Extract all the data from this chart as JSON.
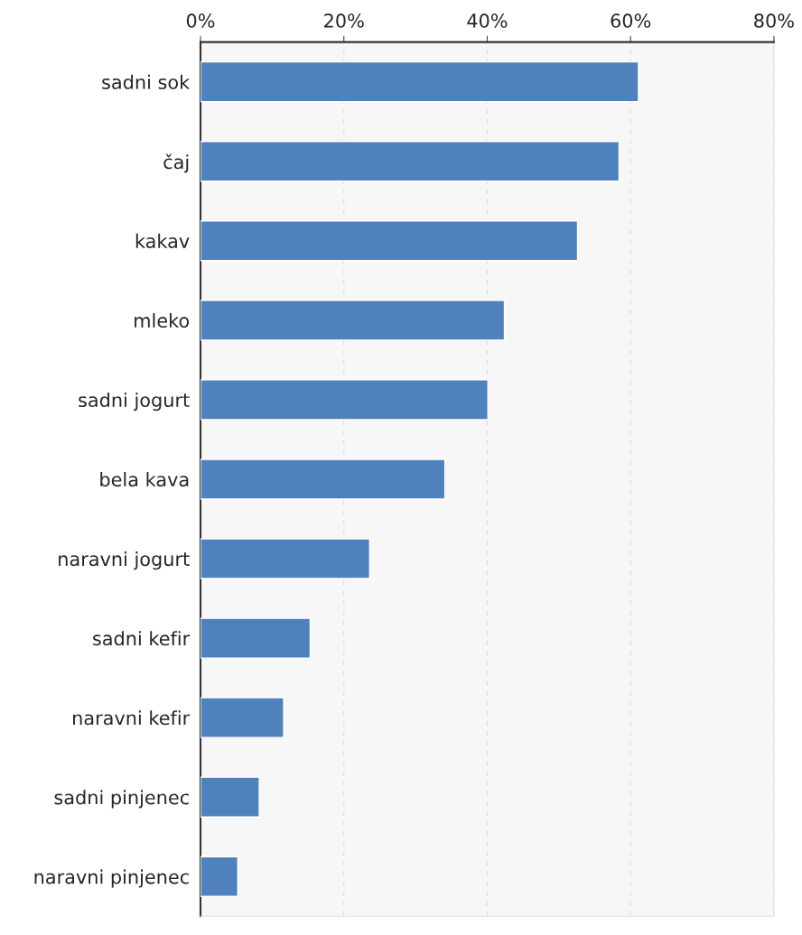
{
  "chart_data": {
    "type": "bar",
    "orientation": "horizontal",
    "categories": [
      "sadni sok",
      "čaj",
      "kakav",
      "mleko",
      "sadni jogurt",
      "bela kava",
      "naravni jogurt",
      "sadni kefir",
      "naravni kefir",
      "sadni pinjenec",
      "naravni pinjenec"
    ],
    "values": [
      61.1,
      58.4,
      52.6,
      42.4,
      40.1,
      34.1,
      23.6,
      15.3,
      11.6,
      8.2,
      5.2
    ],
    "color": "#4f81bd",
    "xlim": [
      0,
      80
    ],
    "xticks": [
      {
        "value": 0,
        "label": "0%"
      },
      {
        "value": 20,
        "label": "20%"
      },
      {
        "value": 40,
        "label": "40%"
      },
      {
        "value": 60,
        "label": "60%"
      },
      {
        "value": 80,
        "label": "80%"
      }
    ],
    "grid": "x"
  }
}
